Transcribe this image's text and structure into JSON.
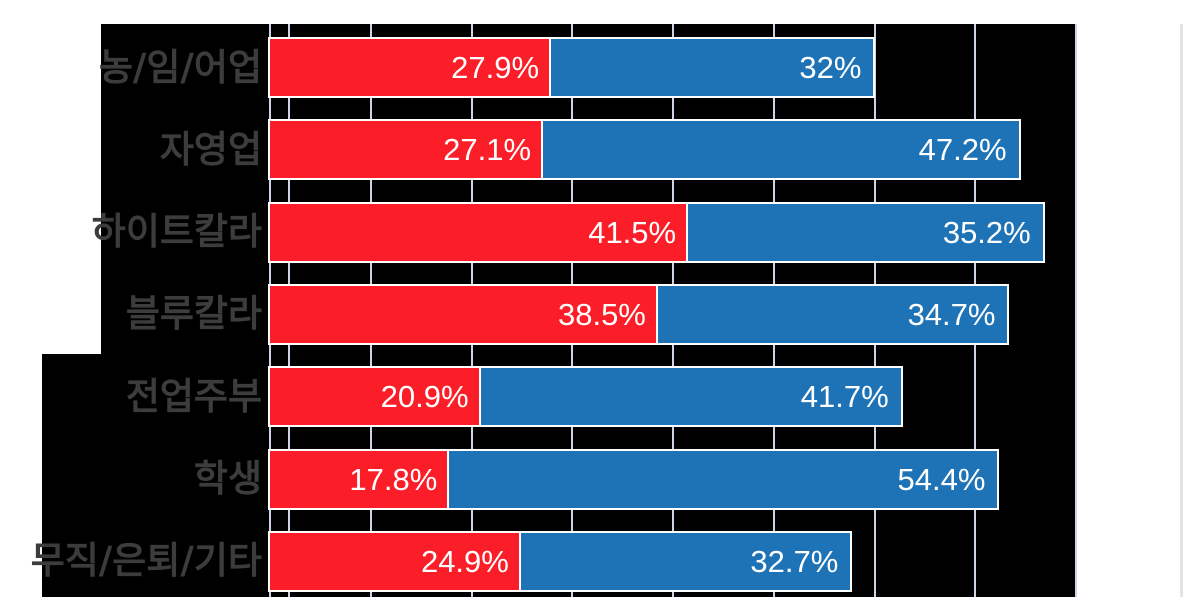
{
  "chart_data": {
    "type": "bar",
    "orientation": "horizontal",
    "stacked": true,
    "title": "",
    "xlabel": "",
    "ylabel": "",
    "categories": [
      "농/임/어업",
      "자영업",
      "하이트칼라",
      "블루칼라",
      "전업주부",
      "학생",
      "무직/은퇴/기타"
    ],
    "series": [
      {
        "key": "red-series",
        "color": "#fb1d27",
        "values": [
          27.9,
          27.1,
          41.5,
          38.5,
          20.9,
          17.8,
          24.9
        ],
        "labels": [
          "27.9%",
          "27.1%",
          "41.5%",
          "38.5%",
          "20.9%",
          "17.8%",
          "24.9%"
        ]
      },
      {
        "key": "blue-series",
        "color": "#1e73b7",
        "values": [
          32,
          47.2,
          35.2,
          34.7,
          41.7,
          54.4,
          32.7
        ],
        "labels": [
          "32%",
          "47.2%",
          "35.2%",
          "34.7%",
          "41.7%",
          "54.4%",
          "32.7%"
        ]
      }
    ],
    "x_axis": {
      "min": 0,
      "max": 80,
      "unit": "%",
      "gridline_pcts": [
        0,
        1.9,
        10,
        20,
        30,
        40,
        50,
        60,
        70,
        80
      ],
      "tick_labels_visible": false
    },
    "legend": {
      "visible": false
    },
    "grid": true,
    "colors": {
      "plot_background": "#000000",
      "page_background": "#ffffff",
      "gridline": "#ccd4e6",
      "bar_border": "#ffffff",
      "category_label": "#3c3c3c",
      "value_label": "#ffffff",
      "right_edge_line": "#e4e4e4"
    }
  }
}
